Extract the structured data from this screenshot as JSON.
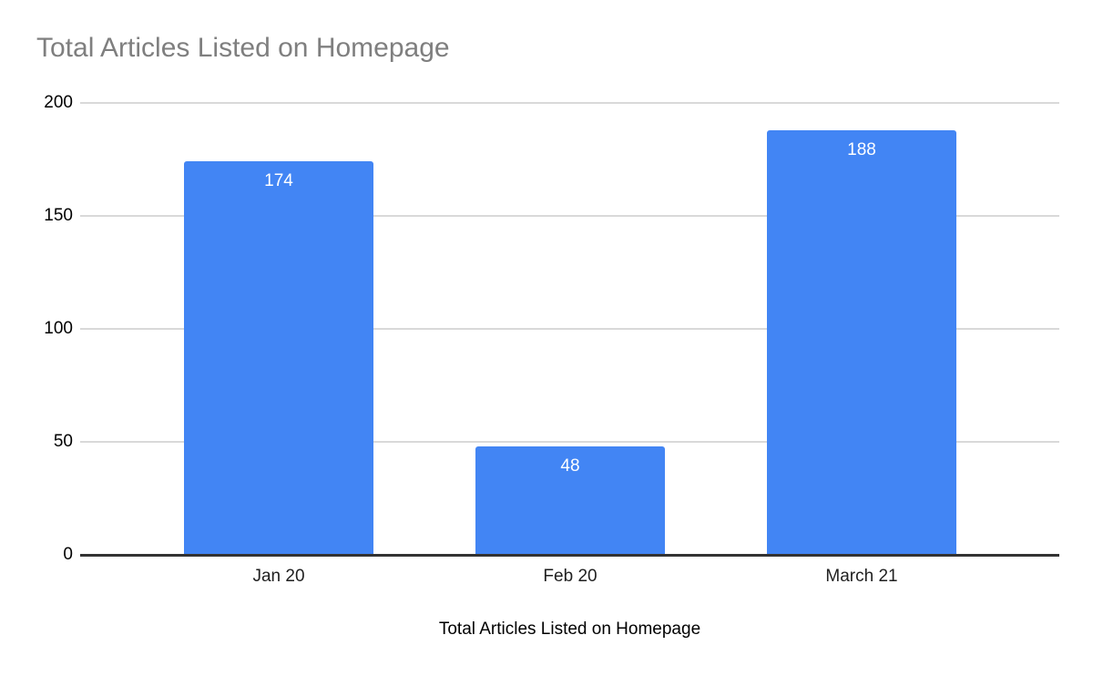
{
  "chart_data": {
    "type": "bar",
    "title": "Total Articles Listed on Homepage",
    "categories": [
      "Jan 20",
      "Feb 20",
      "March 21"
    ],
    "values": [
      174,
      48,
      188
    ],
    "value_labels": [
      "174",
      "48",
      "188"
    ],
    "xlabel": "Total Articles Listed on Homepage",
    "ylabel": "",
    "ylim": [
      0,
      200
    ],
    "yticks": [
      0,
      50,
      100,
      150,
      200
    ],
    "grid": true,
    "legend": "none",
    "colors": {
      "bar": "#4285f4",
      "value_label": "#ffffff",
      "title": "#7f7f7f",
      "gridline": "#d9d9d9",
      "baseline": "#333333",
      "tick_label": "#000000"
    }
  }
}
